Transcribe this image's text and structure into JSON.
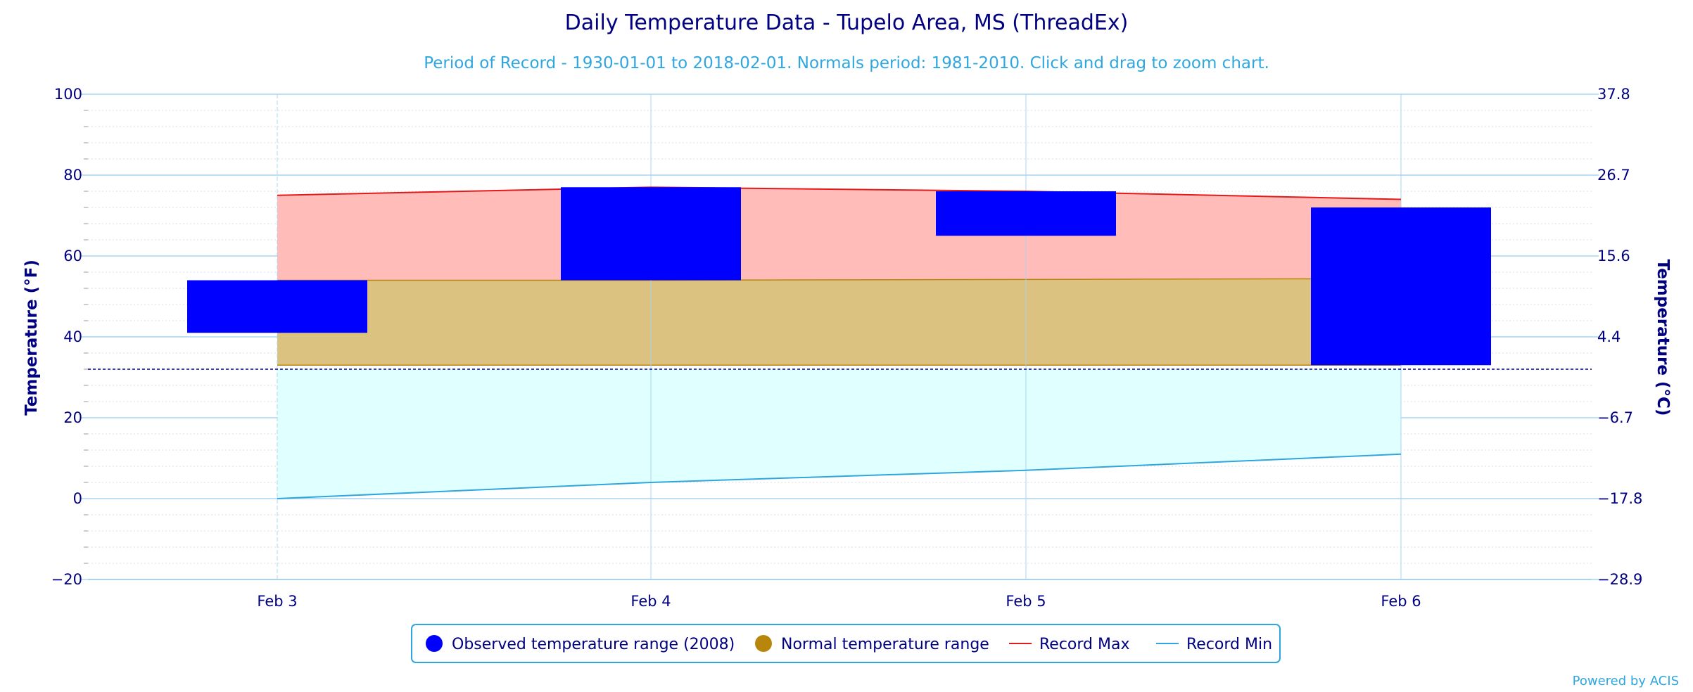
{
  "colors": {
    "title": "#000080",
    "subtitle": "#2fa7de",
    "observed": "#0000ff",
    "normal_fill": "#dbc281",
    "normal_line": "#b8860b",
    "record_max_line": "#e31a1c",
    "record_max_fill": "#ffbcb9",
    "record_min_line": "#2fa7de",
    "record_min_fill": "#e0ffff",
    "freezing_line": "#000080",
    "grid": "#a8d4f0",
    "minor_grid": "#dddddd",
    "legend_border": "#2fa7de"
  },
  "legend": {
    "items": [
      {
        "label": "Observed temperature range (2008)",
        "symbol": "circle",
        "color": "#0000ff"
      },
      {
        "label": "Normal temperature range",
        "symbol": "circle",
        "color": "#b8860b"
      },
      {
        "label": "Record Max",
        "symbol": "line",
        "color": "#e31a1c"
      },
      {
        "label": "Record Min",
        "symbol": "line",
        "color": "#2fa7de"
      }
    ]
  },
  "credit": "Powered by ACIS",
  "chart_data": {
    "type": "bar",
    "title": "Daily Temperature Data - Tupelo Area, MS (ThreadEx)",
    "subtitle": "Period of Record - 1930-01-01 to 2018-02-01. Normals period: 1981-2010. Click and drag to zoom chart.",
    "ylabel": "Temperature (°F)",
    "ylabel_right": "Temperature (°C)",
    "ylim": [
      -20,
      100
    ],
    "y_ticks": [
      -20,
      0,
      20,
      40,
      60,
      80,
      100
    ],
    "y_ticks_right": [
      "-28.9",
      "-17.8",
      "-6.7",
      "4.4",
      "15.6",
      "26.7",
      "37.8"
    ],
    "categories": [
      "Feb 3",
      "Feb 4",
      "Feb 5",
      "Feb 6"
    ],
    "freezing_line": 32,
    "grid": true,
    "legend_position": "bottom",
    "series": [
      {
        "name": "Observed temperature range (2008)",
        "kind": "columnrange",
        "low": [
          41,
          54,
          65,
          33
        ],
        "high": [
          54,
          77,
          76,
          72
        ]
      },
      {
        "name": "Normal temperature range",
        "kind": "arearange",
        "low": [
          33,
          33,
          33,
          33
        ],
        "high": [
          54,
          54,
          54.2,
          54.4
        ]
      },
      {
        "name": "Record Max",
        "kind": "line",
        "values": [
          75,
          77,
          76,
          74
        ]
      },
      {
        "name": "Record Min",
        "kind": "line",
        "values": [
          0,
          4,
          7,
          11
        ]
      }
    ]
  }
}
